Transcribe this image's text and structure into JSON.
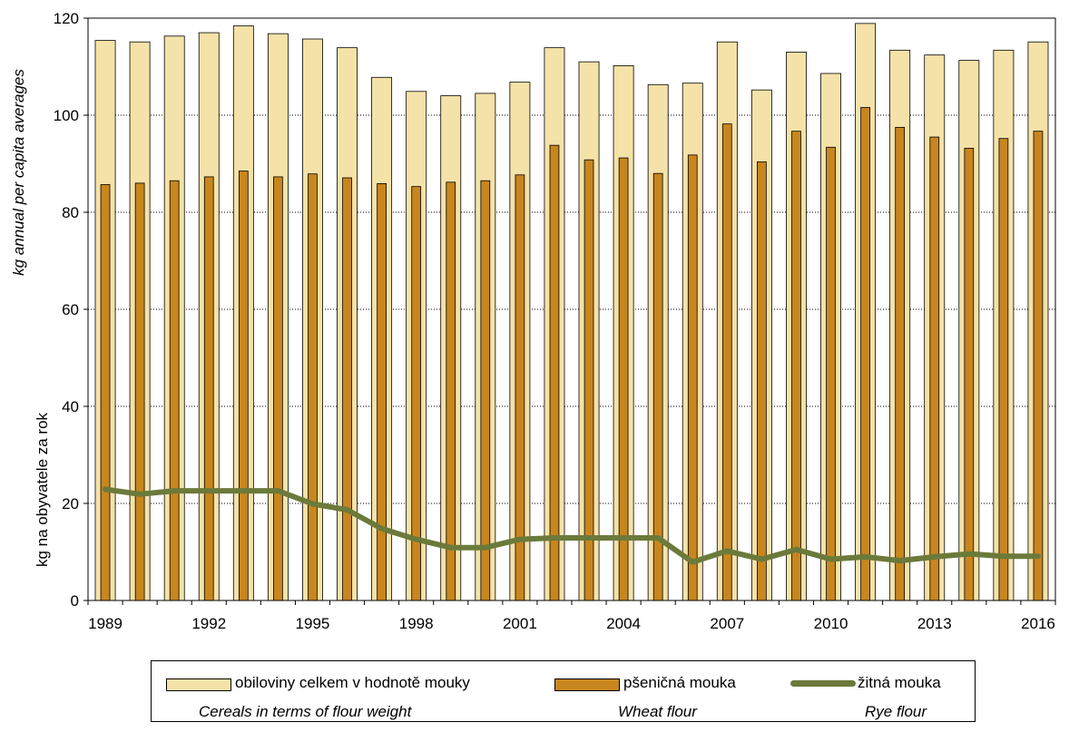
{
  "chart_data": {
    "type": "bar",
    "x": [
      1989,
      1990,
      1991,
      1992,
      1993,
      1994,
      1995,
      1996,
      1997,
      1998,
      1999,
      2000,
      2001,
      2002,
      2003,
      2004,
      2005,
      2006,
      2007,
      2008,
      2009,
      2010,
      2011,
      2012,
      2013,
      2014,
      2015,
      2016
    ],
    "x_tick_labels": [
      "1989",
      "1992",
      "1995",
      "1998",
      "2001",
      "2004",
      "2007",
      "2010",
      "2013",
      "2016"
    ],
    "y_tick_labels": [
      "0",
      "20",
      "40",
      "60",
      "80",
      "100",
      "120"
    ],
    "ylim": [
      0,
      120
    ],
    "ylabel": "kg na obyvatele za rok",
    "ylabel_en": "kg annual per capita averages",
    "grid": "horizontal dotted",
    "legend_position": "bottom",
    "series": [
      {
        "name": "obiloviny celkem v hodnotě mouky",
        "name_en": "Cereals in terms of flour weight",
        "kind": "bar",
        "color": "#f5e2a8",
        "values": [
          115.4,
          115.1,
          116.3,
          117.0,
          118.4,
          116.8,
          115.7,
          113.9,
          107.8,
          104.9,
          104.0,
          104.5,
          106.8,
          113.9,
          111.0,
          110.2,
          106.3,
          106.6,
          115.1,
          105.2,
          113.0,
          108.6,
          118.9,
          113.4,
          112.4,
          111.3,
          113.4,
          115.1
        ]
      },
      {
        "name": "pšeničná mouka",
        "name_en": "Wheat flour",
        "kind": "bar",
        "color": "#c8861e",
        "values": [
          85.7,
          86.0,
          86.5,
          87.3,
          88.5,
          87.3,
          87.9,
          87.1,
          85.9,
          85.3,
          86.2,
          86.5,
          87.7,
          93.8,
          90.8,
          91.2,
          88.0,
          91.8,
          98.2,
          90.4,
          96.7,
          93.4,
          101.6,
          97.5,
          95.5,
          93.2,
          95.2,
          96.7
        ]
      },
      {
        "name": "žitná mouka",
        "name_en": "Rye flour",
        "kind": "line",
        "color": "#6b7a3a",
        "values": [
          22.9,
          21.9,
          22.6,
          22.6,
          22.6,
          22.6,
          19.9,
          18.7,
          14.8,
          12.6,
          10.9,
          10.9,
          12.6,
          12.9,
          12.9,
          12.9,
          12.9,
          7.9,
          10.2,
          8.5,
          10.5,
          8.5,
          9.0,
          8.2,
          9.0,
          9.6,
          9.1,
          9.1
        ]
      }
    ]
  }
}
